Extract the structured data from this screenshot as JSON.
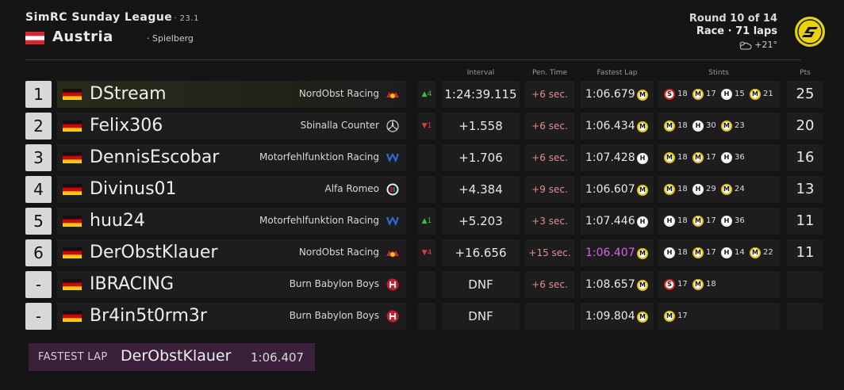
{
  "header": {
    "league": "SimRC Sunday League",
    "season": "· 23.1",
    "country": "Austria",
    "track": "· Spielberg",
    "round": "Round 10 of 14",
    "race": "Race · 71 laps",
    "weather_temp": "+21°",
    "weather_icon": "partly-cloudy-icon",
    "logo_icon": "league-logo-icon",
    "flag_icon": "austria-flag-icon"
  },
  "columns": {
    "interval": "Interval",
    "pen_time": "Pen. Time",
    "fastest_lap": "Fastest Lap",
    "stints": "Stints",
    "pts": "Pts"
  },
  "colors": {
    "soft": "#e02020",
    "medium": "#e8c400",
    "hard": "#f0f0f0",
    "gain": "#3bbf3b",
    "loss": "#e03b3b",
    "fastest_purple": "#d764e6",
    "penalty": "#e58c8c"
  },
  "rows": [
    {
      "pos": "1",
      "driver": "DStream",
      "team": "NordObst Racing",
      "team_icon": "redbull",
      "delta": "▲4",
      "delta_dir": "up",
      "interval": "1:24:39.115",
      "pen": "+6 sec.",
      "fastest": "1:06.679",
      "fastest_tyre": "M",
      "purple": false,
      "stints": [
        {
          "c": "S",
          "n": "18"
        },
        {
          "c": "M",
          "n": "17"
        },
        {
          "c": "H",
          "n": "15"
        },
        {
          "c": "M",
          "n": "21"
        }
      ],
      "pts": "25"
    },
    {
      "pos": "2",
      "driver": "Felix306",
      "team": "Sbinalla Counter",
      "team_icon": "mercedes",
      "delta": "▼1",
      "delta_dir": "down",
      "interval": "+1.558",
      "pen": "+6 sec.",
      "fastest": "1:06.434",
      "fastest_tyre": "M",
      "purple": false,
      "stints": [
        {
          "c": "M",
          "n": "18"
        },
        {
          "c": "H",
          "n": "30"
        },
        {
          "c": "M",
          "n": "23"
        }
      ],
      "pts": "20"
    },
    {
      "pos": "3",
      "driver": "DennisEscobar",
      "team": "Motorfehlfunktion Racing",
      "team_icon": "williams",
      "delta": "",
      "delta_dir": "",
      "interval": "+1.706",
      "pen": "+6 sec.",
      "fastest": "1:07.428",
      "fastest_tyre": "H",
      "purple": false,
      "stints": [
        {
          "c": "M",
          "n": "18"
        },
        {
          "c": "M",
          "n": "17"
        },
        {
          "c": "H",
          "n": "36"
        }
      ],
      "pts": "16"
    },
    {
      "pos": "4",
      "driver": "Divinus01",
      "team": "Alfa Romeo",
      "team_icon": "alfaromeo",
      "delta": "",
      "delta_dir": "",
      "interval": "+4.384",
      "pen": "+9 sec.",
      "fastest": "1:06.607",
      "fastest_tyre": "M",
      "purple": false,
      "stints": [
        {
          "c": "M",
          "n": "18"
        },
        {
          "c": "H",
          "n": "29"
        },
        {
          "c": "M",
          "n": "24"
        }
      ],
      "pts": "13"
    },
    {
      "pos": "5",
      "driver": "huu24",
      "team": "Motorfehlfunktion Racing",
      "team_icon": "williams",
      "delta": "▲1",
      "delta_dir": "up",
      "interval": "+5.203",
      "pen": "+3 sec.",
      "fastest": "1:07.446",
      "fastest_tyre": "H",
      "purple": false,
      "stints": [
        {
          "c": "H",
          "n": "18"
        },
        {
          "c": "M",
          "n": "17"
        },
        {
          "c": "H",
          "n": "36"
        }
      ],
      "pts": "11"
    },
    {
      "pos": "6",
      "driver": "DerObstKlauer",
      "team": "NordObst Racing",
      "team_icon": "redbull",
      "delta": "▼4",
      "delta_dir": "down",
      "interval": "+16.656",
      "pen": "+15 sec.",
      "fastest": "1:06.407",
      "fastest_tyre": "M",
      "purple": true,
      "stints": [
        {
          "c": "H",
          "n": "18"
        },
        {
          "c": "M",
          "n": "17"
        },
        {
          "c": "H",
          "n": "14"
        },
        {
          "c": "M",
          "n": "22"
        }
      ],
      "pts": "11"
    },
    {
      "pos": "-",
      "driver": "IBRACING",
      "team": "Burn Babylon Boys",
      "team_icon": "haas",
      "delta": "",
      "delta_dir": "",
      "interval": "DNF",
      "pen": "+6 sec.",
      "fastest": "1:08.657",
      "fastest_tyre": "M",
      "purple": false,
      "stints": [
        {
          "c": "S",
          "n": "17"
        },
        {
          "c": "M",
          "n": "18"
        }
      ],
      "pts": ""
    },
    {
      "pos": "-",
      "driver": "Br4in5t0rm3r",
      "team": "Burn Babylon Boys",
      "team_icon": "haas",
      "delta": "",
      "delta_dir": "",
      "interval": "DNF",
      "pen": "",
      "fastest": "1:09.804",
      "fastest_tyre": "M",
      "purple": false,
      "stints": [
        {
          "c": "M",
          "n": "17"
        }
      ],
      "pts": ""
    }
  ],
  "fastest_lap": {
    "label": "FASTEST LAP",
    "driver": "DerObstKlauer",
    "time": "1:06.407"
  }
}
